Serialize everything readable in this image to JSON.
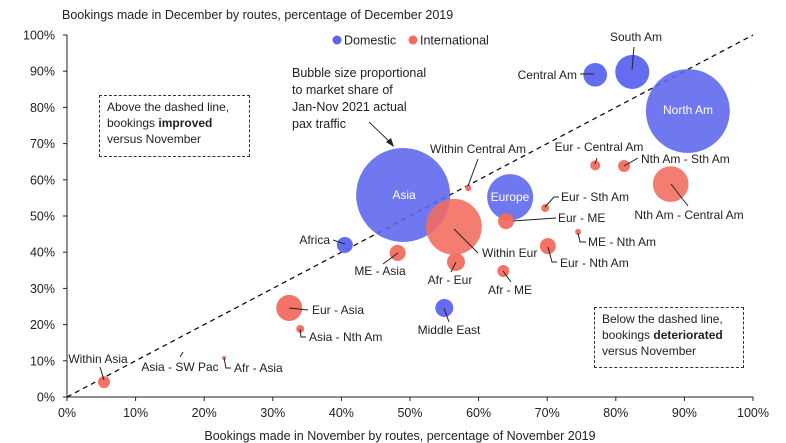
{
  "chart_data": {
    "type": "scatter",
    "subtype": "bubble",
    "title": "Bookings made in December by routes, percentage of December 2019",
    "xlabel": "Bookings made in November by routes, percentage of November 2019",
    "ylabel": "",
    "xlim": [
      0,
      100
    ],
    "ylim": [
      0,
      100
    ],
    "xticks": [
      "0%",
      "10%",
      "20%",
      "30%",
      "40%",
      "50%",
      "60%",
      "70%",
      "80%",
      "90%",
      "100%"
    ],
    "yticks": [
      "0%",
      "10%",
      "20%",
      "30%",
      "40%",
      "50%",
      "60%",
      "70%",
      "80%",
      "90%",
      "100%"
    ],
    "grid": false,
    "legend": {
      "position": "top-center",
      "items": [
        {
          "name": "Domestic",
          "color": "#5c65ee"
        },
        {
          "name": "International",
          "color": "#f26b5e"
        }
      ]
    },
    "reference_line": "y = x (dashed)",
    "points": [
      {
        "label": "Asia",
        "type": "Domestic",
        "x": 49,
        "y": 55.8,
        "size": 22.1
      },
      {
        "label": "North Am",
        "type": "Domestic",
        "x": 90.5,
        "y": 79,
        "size": 17.6
      },
      {
        "label": "South Am",
        "type": "Domestic",
        "x": 82.4,
        "y": 89.8,
        "size": 2.9
      },
      {
        "label": "Central Am",
        "type": "Domestic",
        "x": 77,
        "y": 89,
        "size": 1.4
      },
      {
        "label": "Europe",
        "type": "Domestic",
        "x": 64.6,
        "y": 55.2,
        "size": 5.3
      },
      {
        "label": "Africa",
        "type": "Domestic",
        "x": 40.5,
        "y": 42,
        "size": 0.64
      },
      {
        "label": "Middle East",
        "type": "Domestic",
        "x": 55,
        "y": 24.6,
        "size": 0.81
      },
      {
        "label": "Within Eur",
        "type": "International",
        "x": 56.4,
        "y": 47,
        "size": 7.8
      },
      {
        "label": "Eur - Asia",
        "type": "International",
        "x": 32.4,
        "y": 24.6,
        "size": 1.7
      },
      {
        "label": "ME - Asia",
        "type": "International",
        "x": 48.2,
        "y": 39.8,
        "size": 0.64
      },
      {
        "label": "Afr - Eur",
        "type": "International",
        "x": 56.7,
        "y": 37.3,
        "size": 0.81
      },
      {
        "label": "Afr - ME",
        "type": "International",
        "x": 63.6,
        "y": 34.8,
        "size": 0.36
      },
      {
        "label": "Eur - ME",
        "type": "International",
        "x": 64,
        "y": 48.6,
        "size": 0.64
      },
      {
        "label": "Eur - Sth Am",
        "type": "International",
        "x": 69.7,
        "y": 52.2,
        "size": 0.16
      },
      {
        "label": "Eur - Nth Am",
        "type": "International",
        "x": 70.1,
        "y": 41.7,
        "size": 0.64
      },
      {
        "label": "ME - Nth Am",
        "type": "International",
        "x": 74.5,
        "y": 45.6,
        "size": 0.09
      },
      {
        "label": "Eur - Central Am",
        "type": "International",
        "x": 77,
        "y": 64,
        "size": 0.25
      },
      {
        "label": "Nth Am - Sth Am",
        "type": "International",
        "x": 81.2,
        "y": 63.8,
        "size": 0.36
      },
      {
        "label": "Nth Am - Central Am",
        "type": "International",
        "x": 88,
        "y": 58.8,
        "size": 3.2
      },
      {
        "label": "Within Central Am",
        "type": "International",
        "x": 58.5,
        "y": 57.7,
        "size": 0.09
      },
      {
        "label": "Within Asia",
        "type": "International",
        "x": 5.4,
        "y": 4.1,
        "size": 0.36
      },
      {
        "label": "Asia - Nth Am",
        "type": "International",
        "x": 34,
        "y": 18.8,
        "size": 0.16
      },
      {
        "label": "Afr - Asia",
        "type": "International",
        "x": 22.9,
        "y": 10.8,
        "size": 0.04
      },
      {
        "label": "Asia - SW Pac",
        "type": "International",
        "x": 17,
        "y": 11,
        "size": 0
      }
    ],
    "annotations": {
      "bubble_note": [
        "Bubble size proportional",
        "to market share of",
        "Jan-Nov 2021 actual",
        "pax traffic"
      ],
      "above_box": {
        "line1": "Above the dashed line,",
        "pre": "bookings ",
        "bold": "improved",
        "line3": "versus November"
      },
      "below_box": {
        "line1": "Below the dashed line,",
        "pre": "bookings ",
        "bold": "deteriorated",
        "line3": "versus November"
      }
    }
  }
}
